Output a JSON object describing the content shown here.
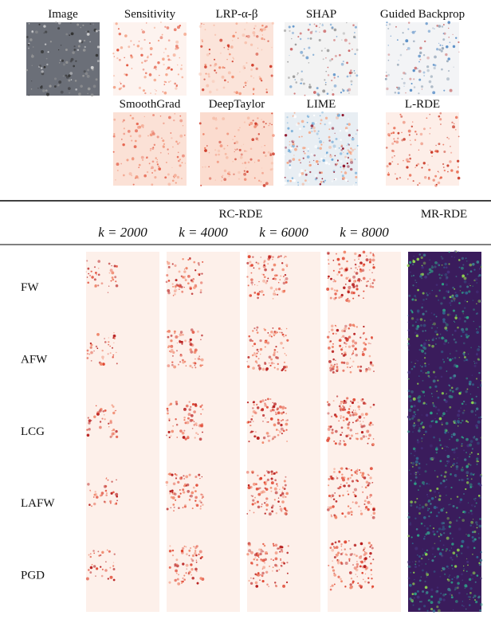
{
  "panels": [
    {
      "label": "Image"
    },
    {
      "label": "Sensitivity"
    },
    {
      "label": "LRP-α-β"
    },
    {
      "label": "SHAP"
    },
    {
      "label": "Guided Backprop"
    },
    {
      "label": "SmoothGrad"
    },
    {
      "label": "DeepTaylor"
    },
    {
      "label": "LIME"
    },
    {
      "label": "L-RDE"
    }
  ],
  "table": {
    "group_header": "RC-RDE",
    "mr_header": "MR-RDE",
    "columns": [
      "k = 2000",
      "k = 4000",
      "k = 6000",
      "k = 8000"
    ],
    "rows": [
      "FW",
      "AFW",
      "LCG",
      "LAFW",
      "PGD"
    ]
  }
}
